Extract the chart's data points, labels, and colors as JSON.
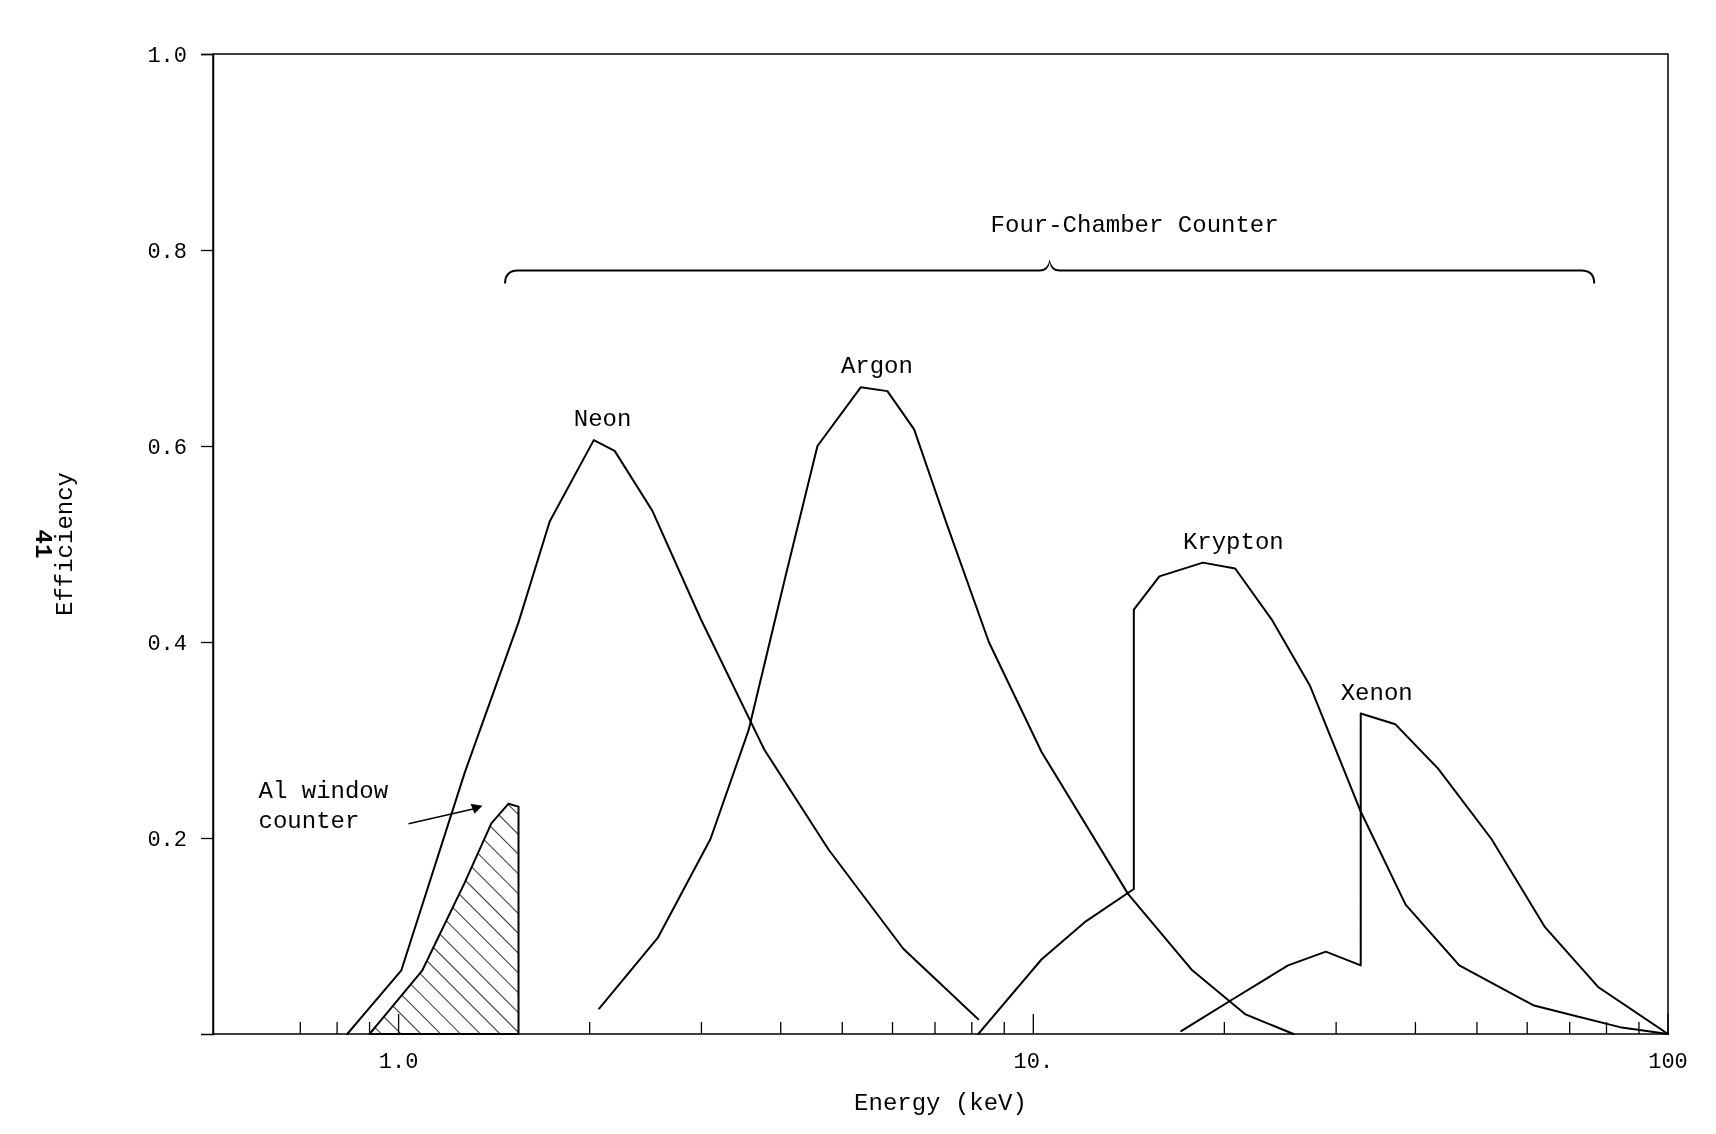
{
  "chart_data": {
    "type": "line",
    "xlabel": "Energy (keV)",
    "ylabel": "Efficiency",
    "log": "x",
    "xlim": [
      0.51,
      100
    ],
    "ylim": [
      0,
      1
    ],
    "xticks": [
      {
        "value": 0.7,
        "label": null
      },
      {
        "value": 0.8,
        "label": null
      },
      {
        "value": 0.9,
        "label": null
      },
      {
        "value": 1,
        "label": "1.0"
      },
      {
        "value": 2,
        "label": null
      },
      {
        "value": 3,
        "label": null
      },
      {
        "value": 4,
        "label": null
      },
      {
        "value": 5,
        "label": null
      },
      {
        "value": 6,
        "label": null
      },
      {
        "value": 7,
        "label": null
      },
      {
        "value": 8,
        "label": null
      },
      {
        "value": 9,
        "label": null
      },
      {
        "value": 10,
        "label": "10."
      },
      {
        "value": 20,
        "label": null
      },
      {
        "value": 30,
        "label": null
      },
      {
        "value": 40,
        "label": null
      },
      {
        "value": 50,
        "label": null
      },
      {
        "value": 60,
        "label": null
      },
      {
        "value": 70,
        "label": null
      },
      {
        "value": 80,
        "label": null
      },
      {
        "value": 90,
        "label": null
      },
      100
    ],
    "yticks": [
      0.2,
      0.4,
      0.6,
      0.8,
      {
        "value": 1,
        "label": "1.0"
      }
    ],
    "grid": false,
    "marker": "none",
    "line_style": "solid",
    "annotations": [
      "Four-Chamber Counter",
      "41"
    ],
    "series": [
      {
        "name": "Al window counter",
        "type": "area",
        "color": "#000000",
        "x": [
          0.9,
          1.09,
          1.27,
          1.4,
          1.49,
          1.545,
          1.545
        ],
        "values": [
          0,
          0.065,
          0.154,
          0.215,
          0.235,
          0.232,
          0
        ]
      },
      {
        "name": "Neon",
        "color": "#000000",
        "x": [
          0.83,
          1.01,
          1.27,
          1.545,
          1.73,
          2.03,
          2.19,
          2.51,
          2.99,
          3.77,
          4.76,
          6.24,
          8.19
        ],
        "values": [
          0,
          0.065,
          0.266,
          0.42,
          0.523,
          0.606,
          0.595,
          0.534,
          0.424,
          0.29,
          0.188,
          0.087,
          0.015
        ]
      },
      {
        "name": "Argon",
        "color": "#000000",
        "x": [
          2.07,
          2.56,
          3.1,
          3.56,
          4.07,
          4.57,
          5.35,
          5.89,
          6.49,
          7.29,
          8.51,
          10.3,
          14.1,
          17.8,
          21.6,
          25.7
        ],
        "values": [
          0.026,
          0.098,
          0.199,
          0.31,
          0.467,
          0.6,
          0.66,
          0.656,
          0.617,
          0.522,
          0.4,
          0.288,
          0.143,
          0.065,
          0.02,
          0
        ]
      },
      {
        "name": "Krypton",
        "color": "#000000",
        "x": [
          8.19,
          10.3,
          12.1,
          14.4,
          14.4,
          15.8,
          18.5,
          20.8,
          23.8,
          27.3,
          32.8,
          38.6,
          46.9,
          61.5,
          84,
          100
        ],
        "values": [
          0,
          0.076,
          0.115,
          0.148,
          0.433,
          0.467,
          0.481,
          0.475,
          0.422,
          0.355,
          0.227,
          0.132,
          0.07,
          0.029,
          0.007,
          0
        ]
      },
      {
        "name": "Xenon",
        "color": "#000000",
        "x": [
          17.1,
          20.8,
          25.2,
          28.9,
          32.8,
          32.8,
          37.2,
          43.4,
          52.7,
          64,
          77.6,
          100
        ],
        "values": [
          0.003,
          0.037,
          0.07,
          0.084,
          0.07,
          0.327,
          0.316,
          0.271,
          0.199,
          0.109,
          0.048,
          0
        ]
      }
    ]
  }
}
